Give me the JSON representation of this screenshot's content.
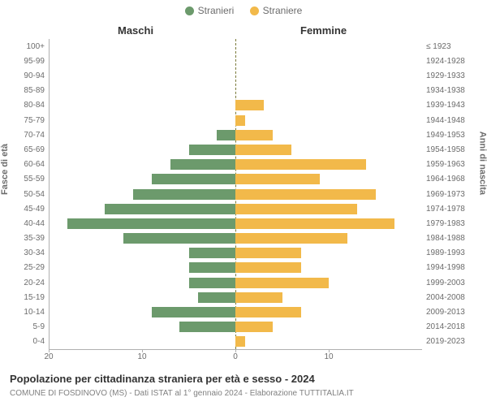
{
  "legend": {
    "male": {
      "label": "Stranieri",
      "color": "#6c9a6c"
    },
    "female": {
      "label": "Straniere",
      "color": "#f2b94a"
    }
  },
  "columns": {
    "male": "Maschi",
    "female": "Femmine"
  },
  "axis": {
    "left_title": "Fasce di età",
    "right_title": "Anni di nascita",
    "xlim": 20,
    "xticks_left": [
      20,
      10,
      0
    ],
    "xticks_right": [
      10
    ],
    "grid_color": "#b0b0b0",
    "centerline_color": "#7a7a3a"
  },
  "chart": {
    "type": "population-pyramid",
    "bar_color_male": "#6c9a6c",
    "bar_color_female": "#f2b94a",
    "background": "#ffffff",
    "rows": [
      {
        "age": "100+",
        "birth": "≤ 1923",
        "m": 0.0,
        "f": 0.0
      },
      {
        "age": "95-99",
        "birth": "1924-1928",
        "m": 0.0,
        "f": 0.0
      },
      {
        "age": "90-94",
        "birth": "1929-1933",
        "m": 0.0,
        "f": 0.0
      },
      {
        "age": "85-89",
        "birth": "1934-1938",
        "m": 0.0,
        "f": 0.0
      },
      {
        "age": "80-84",
        "birth": "1939-1943",
        "m": 0.0,
        "f": 3.0
      },
      {
        "age": "75-79",
        "birth": "1944-1948",
        "m": 0.0,
        "f": 1.0
      },
      {
        "age": "70-74",
        "birth": "1949-1953",
        "m": 2.0,
        "f": 4.0
      },
      {
        "age": "65-69",
        "birth": "1954-1958",
        "m": 5.0,
        "f": 6.0
      },
      {
        "age": "60-64",
        "birth": "1959-1963",
        "m": 7.0,
        "f": 14.0
      },
      {
        "age": "55-59",
        "birth": "1964-1968",
        "m": 9.0,
        "f": 9.0
      },
      {
        "age": "50-54",
        "birth": "1969-1973",
        "m": 11.0,
        "f": 15.0
      },
      {
        "age": "45-49",
        "birth": "1974-1978",
        "m": 14.0,
        "f": 13.0
      },
      {
        "age": "40-44",
        "birth": "1979-1983",
        "m": 18.0,
        "f": 17.0
      },
      {
        "age": "35-39",
        "birth": "1984-1988",
        "m": 12.0,
        "f": 12.0
      },
      {
        "age": "30-34",
        "birth": "1989-1993",
        "m": 5.0,
        "f": 7.0
      },
      {
        "age": "25-29",
        "birth": "1994-1998",
        "m": 5.0,
        "f": 7.0
      },
      {
        "age": "20-24",
        "birth": "1999-2003",
        "m": 5.0,
        "f": 10.0
      },
      {
        "age": "15-19",
        "birth": "2004-2008",
        "m": 4.0,
        "f": 5.0
      },
      {
        "age": "10-14",
        "birth": "2009-2013",
        "m": 9.0,
        "f": 7.0
      },
      {
        "age": "5-9",
        "birth": "2014-2018",
        "m": 6.0,
        "f": 4.0
      },
      {
        "age": "0-4",
        "birth": "2019-2023",
        "m": 0.0,
        "f": 1.0
      }
    ]
  },
  "title": "Popolazione per cittadinanza straniera per età e sesso - 2024",
  "subtitle": "COMUNE DI FOSDINOVO (MS) - Dati ISTAT al 1° gennaio 2024 - Elaborazione TUTTITALIA.IT"
}
